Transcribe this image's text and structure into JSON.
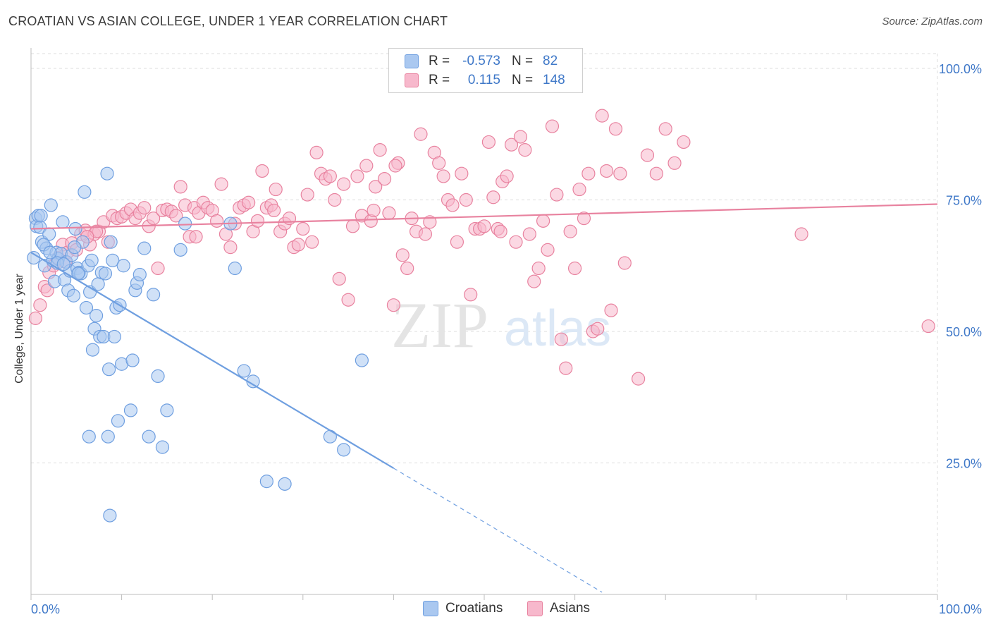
{
  "header": {
    "title": "CROATIAN VS ASIAN COLLEGE, UNDER 1 YEAR CORRELATION CHART",
    "source": "Source: ZipAtlas.com"
  },
  "watermark": {
    "zip": "ZIP",
    "atlas": "atlas"
  },
  "legend": {
    "rows": [
      {
        "r_label": "R =",
        "r_value": "-0.573",
        "n_label": "N =",
        "n_value": "82",
        "color": "#aac8f0"
      },
      {
        "r_label": "R =",
        "r_value": "0.115",
        "n_label": "N =",
        "n_value": "148",
        "color": "#f7b8cc"
      }
    ],
    "bottom": [
      {
        "label": "Croatians",
        "color": "#aac8f0"
      },
      {
        "label": "Asians",
        "color": "#f7b8cc"
      }
    ]
  },
  "chart_data": {
    "type": "scatter",
    "title": "CROATIAN VS ASIAN COLLEGE, UNDER 1 YEAR CORRELATION CHART",
    "xlabel": "",
    "ylabel": "College, Under 1 year",
    "xlim": [
      0,
      100
    ],
    "ylim": [
      0,
      100
    ],
    "x_tick_labels": [
      "0.0%",
      "100.0%"
    ],
    "y_tick_labels": [
      "25.0%",
      "50.0%",
      "75.0%",
      "100.0%"
    ],
    "y_ticks": [
      25,
      50,
      75,
      100
    ],
    "grid": true,
    "legend_position": "top-center",
    "series": [
      {
        "name": "Croatians",
        "color": "#6f9fe0",
        "fill": "#aac8f0",
        "trend": {
          "x0": 0,
          "y0": 65.0,
          "x1": 40,
          "y1": 24.0,
          "dash_to_x": 63
        },
        "points": [
          [
            0.3,
            64.0
          ],
          [
            0.5,
            71.5
          ],
          [
            0.6,
            70.0
          ],
          [
            0.8,
            72.0
          ],
          [
            1.0,
            69.8
          ],
          [
            1.2,
            67.0
          ],
          [
            1.5,
            62.5
          ],
          [
            1.7,
            65.8
          ],
          [
            2.0,
            68.5
          ],
          [
            2.2,
            74.0
          ],
          [
            2.4,
            63.5
          ],
          [
            2.6,
            59.5
          ],
          [
            2.8,
            65.0
          ],
          [
            3.0,
            63.8
          ],
          [
            3.3,
            64.8
          ],
          [
            3.5,
            70.8
          ],
          [
            3.7,
            59.8
          ],
          [
            3.9,
            63.2
          ],
          [
            4.1,
            57.8
          ],
          [
            4.3,
            61.5
          ],
          [
            4.5,
            64.5
          ],
          [
            4.7,
            56.8
          ],
          [
            4.9,
            69.5
          ],
          [
            5.1,
            62.0
          ],
          [
            5.3,
            61.2
          ],
          [
            5.5,
            61.0
          ],
          [
            5.7,
            67.0
          ],
          [
            5.9,
            76.5
          ],
          [
            6.1,
            54.5
          ],
          [
            6.3,
            62.5
          ],
          [
            6.5,
            57.5
          ],
          [
            6.7,
            63.5
          ],
          [
            6.8,
            46.5
          ],
          [
            7.0,
            50.5
          ],
          [
            7.2,
            53.0
          ],
          [
            7.4,
            59.0
          ],
          [
            7.6,
            49.0
          ],
          [
            7.8,
            61.2
          ],
          [
            8.0,
            49.0
          ],
          [
            8.2,
            61.0
          ],
          [
            8.4,
            80.0
          ],
          [
            8.6,
            42.8
          ],
          [
            8.8,
            67.0
          ],
          [
            9.0,
            63.5
          ],
          [
            9.2,
            49.0
          ],
          [
            9.4,
            54.5
          ],
          [
            9.6,
            33.0
          ],
          [
            9.8,
            55.0
          ],
          [
            10.0,
            43.8
          ],
          [
            10.2,
            62.5
          ],
          [
            11.0,
            35.0
          ],
          [
            11.2,
            44.5
          ],
          [
            11.5,
            57.8
          ],
          [
            11.7,
            59.2
          ],
          [
            12.0,
            60.8
          ],
          [
            12.5,
            65.8
          ],
          [
            13.0,
            30.0
          ],
          [
            13.5,
            57.0
          ],
          [
            14.0,
            41.5
          ],
          [
            14.5,
            28.0
          ],
          [
            15.0,
            35.0
          ],
          [
            16.5,
            65.5
          ],
          [
            17.0,
            70.5
          ],
          [
            22.0,
            70.5
          ],
          [
            22.5,
            62.0
          ],
          [
            23.5,
            42.5
          ],
          [
            24.5,
            40.5
          ],
          [
            26.0,
            21.5
          ],
          [
            28.0,
            21.0
          ],
          [
            33.0,
            30.0
          ],
          [
            34.5,
            27.5
          ],
          [
            36.5,
            44.5
          ],
          [
            6.4,
            30.0
          ],
          [
            8.5,
            30.0
          ],
          [
            8.7,
            15.0
          ],
          [
            1.1,
            72.0
          ],
          [
            2.9,
            63.0
          ],
          [
            4.8,
            66.0
          ],
          [
            5.2,
            61.0
          ],
          [
            3.6,
            62.8
          ],
          [
            1.4,
            66.5
          ],
          [
            2.1,
            65.0
          ]
        ]
      },
      {
        "name": "Asians",
        "color": "#e8829f",
        "fill": "#f7b8cc",
        "trend": {
          "x0": 0,
          "y0": 69.5,
          "x1": 100,
          "y1": 74.2
        },
        "points": [
          [
            0.5,
            52.5
          ],
          [
            1.0,
            55.0
          ],
          [
            1.5,
            58.5
          ],
          [
            2.0,
            61.2
          ],
          [
            2.5,
            62.5
          ],
          [
            3.0,
            64.0
          ],
          [
            3.5,
            66.5
          ],
          [
            4.0,
            65.0
          ],
          [
            4.5,
            66.8
          ],
          [
            5.0,
            65.5
          ],
          [
            5.5,
            68.5
          ],
          [
            6.0,
            69.2
          ],
          [
            6.5,
            66.5
          ],
          [
            7.0,
            68.5
          ],
          [
            7.5,
            69.0
          ],
          [
            8.0,
            70.8
          ],
          [
            8.5,
            67.0
          ],
          [
            9.0,
            72.0
          ],
          [
            9.5,
            71.5
          ],
          [
            10.0,
            71.8
          ],
          [
            10.5,
            72.5
          ],
          [
            11.0,
            73.2
          ],
          [
            11.5,
            71.5
          ],
          [
            12.0,
            72.5
          ],
          [
            12.5,
            73.5
          ],
          [
            13.0,
            70.0
          ],
          [
            13.5,
            71.5
          ],
          [
            14.0,
            62.0
          ],
          [
            14.5,
            73.0
          ],
          [
            15.0,
            73.2
          ],
          [
            15.5,
            72.8
          ],
          [
            16.0,
            72.0
          ],
          [
            16.5,
            77.5
          ],
          [
            17.0,
            74.0
          ],
          [
            17.5,
            68.0
          ],
          [
            18.0,
            73.5
          ],
          [
            18.5,
            72.5
          ],
          [
            19.0,
            74.5
          ],
          [
            19.5,
            73.5
          ],
          [
            20.0,
            73.0
          ],
          [
            20.5,
            71.0
          ],
          [
            21.0,
            78.0
          ],
          [
            21.5,
            68.5
          ],
          [
            22.0,
            66.0
          ],
          [
            22.5,
            70.5
          ],
          [
            23.0,
            73.5
          ],
          [
            23.5,
            74.0
          ],
          [
            24.0,
            74.5
          ],
          [
            24.5,
            69.0
          ],
          [
            25.0,
            71.0
          ],
          [
            25.5,
            80.5
          ],
          [
            26.0,
            73.5
          ],
          [
            26.5,
            74.0
          ],
          [
            27.0,
            77.0
          ],
          [
            27.5,
            69.0
          ],
          [
            28.0,
            70.5
          ],
          [
            28.5,
            71.5
          ],
          [
            29.0,
            66.0
          ],
          [
            29.5,
            66.5
          ],
          [
            30.0,
            69.5
          ],
          [
            30.5,
            76.0
          ],
          [
            31.0,
            67.0
          ],
          [
            31.5,
            84.0
          ],
          [
            32.0,
            80.0
          ],
          [
            32.5,
            79.0
          ],
          [
            33.0,
            79.5
          ],
          [
            33.5,
            75.0
          ],
          [
            34.0,
            60.0
          ],
          [
            34.5,
            78.0
          ],
          [
            35.0,
            56.0
          ],
          [
            35.5,
            70.0
          ],
          [
            36.0,
            79.5
          ],
          [
            36.5,
            72.0
          ],
          [
            37.0,
            81.5
          ],
          [
            37.5,
            71.0
          ],
          [
            38.0,
            77.5
          ],
          [
            38.5,
            84.5
          ],
          [
            39.0,
            79.0
          ],
          [
            39.5,
            72.5
          ],
          [
            40.0,
            55.0
          ],
          [
            40.5,
            82.0
          ],
          [
            41.0,
            64.5
          ],
          [
            41.5,
            62.0
          ],
          [
            42.0,
            71.5
          ],
          [
            42.5,
            69.0
          ],
          [
            43.0,
            87.5
          ],
          [
            43.5,
            68.5
          ],
          [
            44.0,
            70.8
          ],
          [
            44.5,
            84.0
          ],
          [
            45.0,
            82.0
          ],
          [
            45.5,
            79.5
          ],
          [
            46.0,
            75.0
          ],
          [
            46.5,
            74.0
          ],
          [
            47.0,
            67.0
          ],
          [
            47.5,
            80.0
          ],
          [
            48.0,
            75.0
          ],
          [
            48.5,
            57.0
          ],
          [
            49.0,
            69.5
          ],
          [
            49.5,
            69.5
          ],
          [
            50.0,
            70.0
          ],
          [
            50.5,
            86.0
          ],
          [
            51.0,
            75.5
          ],
          [
            51.5,
            69.5
          ],
          [
            52.0,
            78.5
          ],
          [
            52.5,
            79.5
          ],
          [
            53.0,
            85.5
          ],
          [
            53.5,
            67.0
          ],
          [
            54.0,
            87.0
          ],
          [
            54.5,
            84.5
          ],
          [
            55.0,
            68.5
          ],
          [
            55.5,
            59.5
          ],
          [
            56.0,
            62.0
          ],
          [
            56.5,
            71.0
          ],
          [
            57.0,
            65.5
          ],
          [
            57.5,
            89.0
          ],
          [
            58.0,
            76.0
          ],
          [
            58.5,
            48.5
          ],
          [
            59.0,
            43.0
          ],
          [
            59.5,
            69.0
          ],
          [
            60.0,
            62.0
          ],
          [
            60.5,
            77.0
          ],
          [
            61.0,
            71.5
          ],
          [
            61.5,
            80.0
          ],
          [
            62.0,
            50.0
          ],
          [
            62.5,
            50.5
          ],
          [
            63.0,
            91.0
          ],
          [
            63.5,
            80.5
          ],
          [
            64.0,
            54.0
          ],
          [
            64.5,
            88.5
          ],
          [
            65.0,
            80.0
          ],
          [
            65.5,
            63.0
          ],
          [
            67.0,
            41.0
          ],
          [
            68.0,
            83.5
          ],
          [
            69.0,
            80.0
          ],
          [
            70.0,
            88.5
          ],
          [
            71.0,
            82.0
          ],
          [
            72.0,
            86.0
          ],
          [
            85.0,
            68.5
          ],
          [
            99.0,
            51.0
          ],
          [
            7.2,
            69.0
          ],
          [
            3.8,
            63.2
          ],
          [
            6.2,
            68.0
          ],
          [
            18.2,
            68.0
          ],
          [
            26.8,
            73.0
          ],
          [
            37.8,
            73.0
          ],
          [
            51.8,
            69.0
          ],
          [
            40.2,
            81.5
          ],
          [
            1.8,
            57.8
          ]
        ]
      }
    ]
  }
}
